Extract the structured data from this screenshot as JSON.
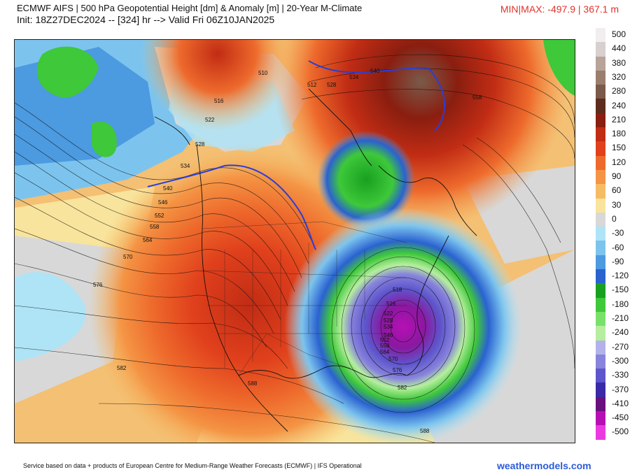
{
  "header": {
    "title": "ECMWF AIFS | 500 hPa Geopotential Height [dm] & Anomaly [m] | 20-Year M-Climate",
    "init": "Init: 18Z27DEC2024 -- [324] hr --> Valid Fri 06Z10JAN2025",
    "minmax": "MIN|MAX: -497.9 | 367.1 m"
  },
  "colorbar": {
    "labels": [
      "500",
      "440",
      "380",
      "320",
      "280",
      "240",
      "210",
      "180",
      "150",
      "120",
      "90",
      "60",
      "30",
      "0",
      "-30",
      "-60",
      "-90",
      "-120",
      "-150",
      "-180",
      "-210",
      "-240",
      "-270",
      "-300",
      "-330",
      "-370",
      "-410",
      "-450",
      "-500"
    ],
    "colors": [
      "#f2eef0",
      "#d8cfcf",
      "#b8a398",
      "#9a7e6e",
      "#7a5a4a",
      "#5e2c1c",
      "#8a1e10",
      "#c12c14",
      "#e0401c",
      "#ee6a2c",
      "#f49444",
      "#f6bc64",
      "#f8e49c",
      "#d8d8d8",
      "#aee4f6",
      "#7cc4ee",
      "#4c9ae0",
      "#2a62d0",
      "#18a020",
      "#3ec83a",
      "#7ae06a",
      "#b6ee9e",
      "#b4b2ea",
      "#8884dc",
      "#5e56cc",
      "#3a2aa8",
      "#6a107e",
      "#b610b4",
      "#ea3ae0"
    ]
  },
  "map": {
    "contour_labels": [
      "510",
      "516",
      "522",
      "528",
      "534",
      "540",
      "546",
      "552",
      "558",
      "564",
      "570",
      "576",
      "582",
      "588",
      "512",
      "528",
      "534",
      "540",
      "558",
      "518",
      "516",
      "522",
      "528",
      "534",
      "546",
      "552",
      "558",
      "564",
      "570",
      "576",
      "582",
      "588"
    ],
    "contour_units": "dm"
  },
  "footer": {
    "credit": "Service based on data + products of European Centre for Medium-Range Weather Forecasts (ECMWF) | IFS Operational",
    "brand": "weathermodels.com"
  }
}
